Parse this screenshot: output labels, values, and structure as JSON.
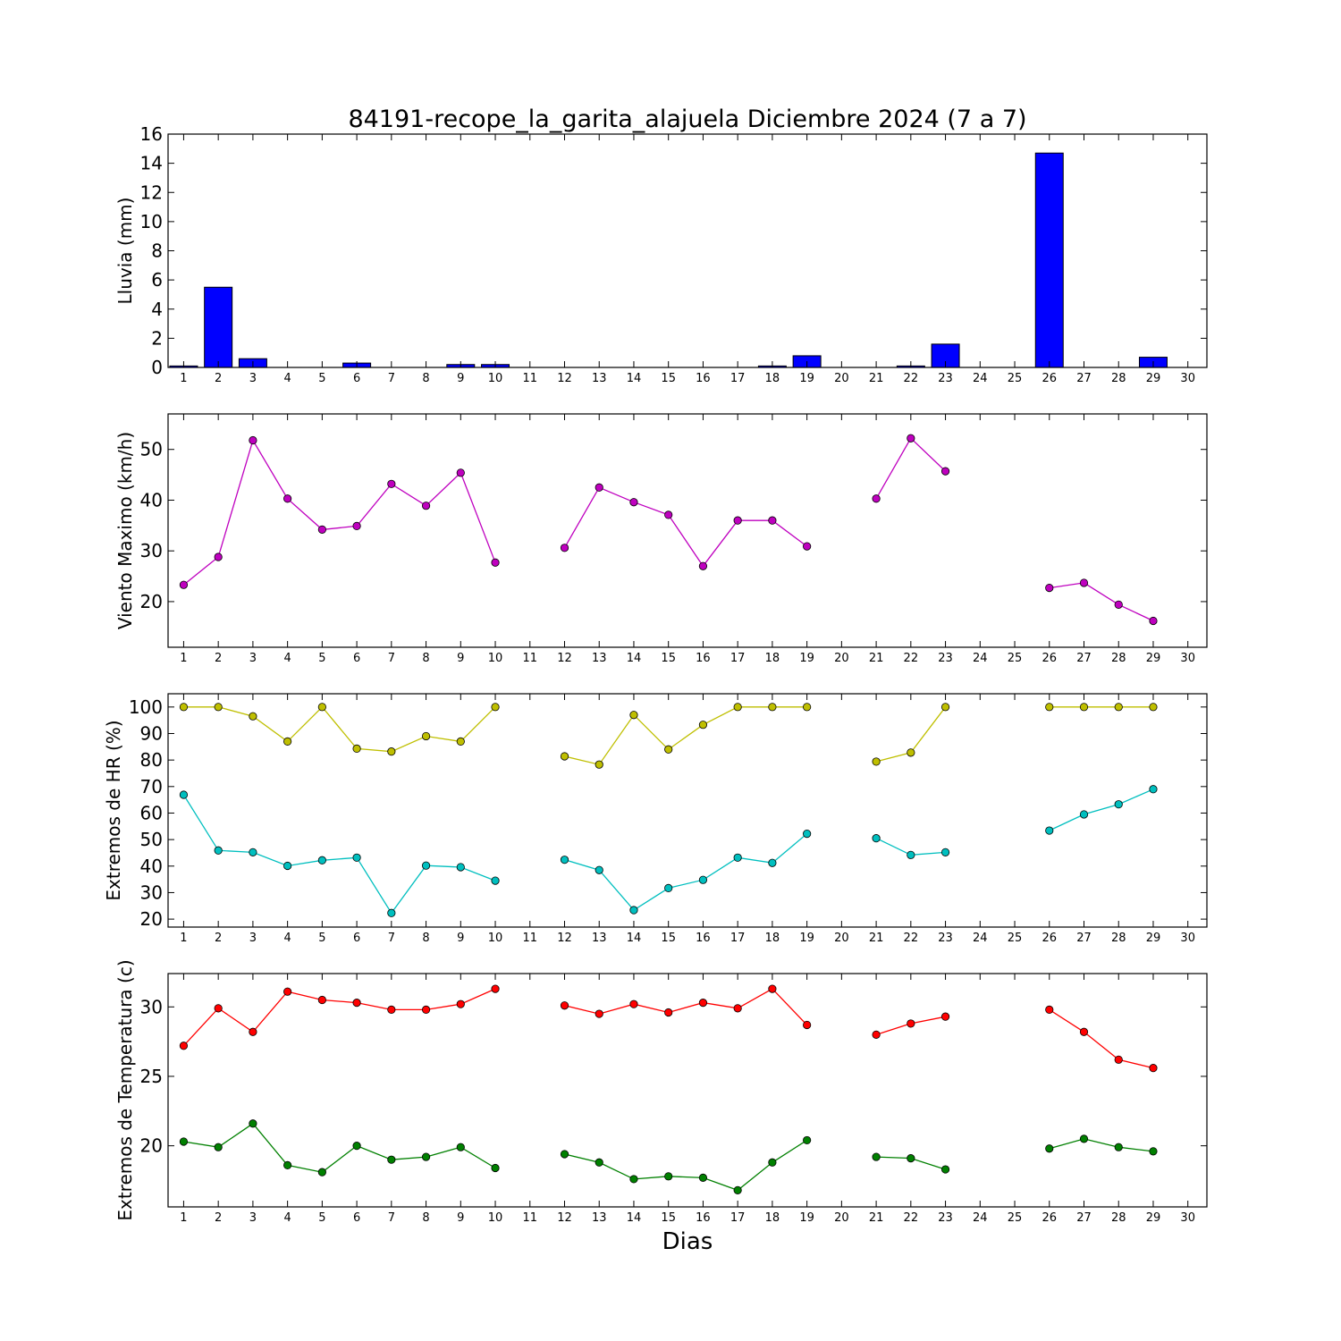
{
  "chart_data": {
    "title": "84191-recope_la_garita_alajuela Diciembre 2024  (7 a 7)",
    "xlabel": "Dias",
    "x_ticks": [
      1,
      2,
      3,
      4,
      5,
      6,
      7,
      8,
      9,
      10,
      11,
      12,
      13,
      14,
      15,
      16,
      17,
      18,
      19,
      20,
      21,
      22,
      23,
      24,
      25,
      26,
      27,
      28,
      29,
      30
    ],
    "panels": [
      {
        "type": "bar",
        "ylabel": "Lluvia (mm)",
        "ylim": [
          0,
          16
        ],
        "yticks": [
          0,
          2,
          4,
          6,
          8,
          10,
          12,
          14,
          16
        ],
        "series": [
          {
            "color": "#0000ff",
            "x": [
              1,
              2,
              3,
              4,
              5,
              6,
              7,
              8,
              9,
              10,
              11,
              12,
              13,
              14,
              15,
              16,
              17,
              18,
              19,
              20,
              21,
              22,
              23,
              24,
              25,
              26,
              27,
              28,
              29,
              30
            ],
            "values": [
              0.1,
              5.5,
              0.6,
              0,
              0,
              0.3,
              0,
              0,
              0.2,
              0.2,
              0,
              0,
              0,
              0,
              0,
              0,
              0,
              0.1,
              0.8,
              0,
              0,
              0.1,
              1.6,
              0,
              0,
              14.7,
              0,
              0,
              0.7,
              0
            ]
          }
        ]
      },
      {
        "type": "line",
        "ylabel": "Viento Maximo (km/h)",
        "ylim": [
          11,
          57
        ],
        "yticks": [
          20,
          30,
          40,
          50
        ],
        "series": [
          {
            "color": "#bf00bf",
            "x": [
              1,
              2,
              3,
              4,
              5,
              6,
              7,
              8,
              9,
              10,
              11,
              12,
              13,
              14,
              15,
              16,
              17,
              18,
              19,
              20,
              21,
              22,
              23,
              24,
              25,
              26,
              27,
              28,
              29
            ],
            "values": [
              23.3,
              28.8,
              51.8,
              40.3,
              34.2,
              34.9,
              43.2,
              38.9,
              45.4,
              27.7,
              null,
              30.6,
              42.5,
              39.6,
              37.1,
              27.0,
              36.0,
              36.0,
              30.9,
              null,
              40.3,
              52.2,
              45.7,
              null,
              null,
              22.7,
              23.7,
              19.4,
              16.2
            ]
          }
        ]
      },
      {
        "type": "line",
        "ylabel": "Extremos de HR (%)",
        "ylim": [
          17,
          105
        ],
        "yticks": [
          20,
          30,
          40,
          50,
          60,
          70,
          80,
          90,
          100
        ],
        "series": [
          {
            "color": "#bfbf00",
            "x": [
              1,
              2,
              3,
              4,
              5,
              6,
              7,
              8,
              9,
              10,
              11,
              12,
              13,
              14,
              15,
              16,
              17,
              18,
              19,
              20,
              21,
              22,
              23,
              24,
              25,
              26,
              27,
              28,
              29
            ],
            "values": [
              100,
              100,
              96.5,
              87,
              100,
              84.3,
              83.2,
              89,
              87,
              100,
              null,
              81.4,
              78.3,
              97,
              84,
              93.3,
              100,
              100,
              100,
              null,
              79.4,
              82.8,
              100,
              null,
              null,
              100,
              100,
              100,
              100
            ]
          },
          {
            "color": "#00bfbf",
            "x": [
              1,
              2,
              3,
              4,
              5,
              6,
              7,
              8,
              9,
              10,
              11,
              12,
              13,
              14,
              15,
              16,
              17,
              18,
              19,
              20,
              21,
              22,
              23,
              24,
              25,
              26,
              27,
              28,
              29
            ],
            "values": [
              66.9,
              45.9,
              45.2,
              40.1,
              42.2,
              43.2,
              22.3,
              40.2,
              39.6,
              34.5,
              null,
              42.4,
              38.5,
              23.4,
              31.7,
              34.8,
              43.2,
              41.2,
              52.2,
              null,
              50.5,
              44.2,
              45.2,
              null,
              null,
              53.4,
              59.5,
              63.3,
              69.0
            ]
          }
        ]
      },
      {
        "type": "line",
        "ylabel": "Extremos de Temperatura (c)",
        "ylim": [
          15.6,
          32.4
        ],
        "yticks": [
          20,
          25,
          30
        ],
        "series": [
          {
            "color": "#ff0000",
            "x": [
              1,
              2,
              3,
              4,
              5,
              6,
              7,
              8,
              9,
              10,
              11,
              12,
              13,
              14,
              15,
              16,
              17,
              18,
              19,
              20,
              21,
              22,
              23,
              24,
              25,
              26,
              27,
              28,
              29
            ],
            "values": [
              27.2,
              29.9,
              28.2,
              31.1,
              30.5,
              30.3,
              29.8,
              29.8,
              30.2,
              31.3,
              null,
              30.1,
              29.5,
              30.2,
              29.6,
              30.3,
              29.9,
              31.3,
              28.7,
              null,
              28.0,
              28.8,
              29.3,
              null,
              null,
              29.8,
              28.2,
              26.2,
              25.6
            ]
          },
          {
            "color": "#008000",
            "x": [
              1,
              2,
              3,
              4,
              5,
              6,
              7,
              8,
              9,
              10,
              11,
              12,
              13,
              14,
              15,
              16,
              17,
              18,
              19,
              20,
              21,
              22,
              23,
              24,
              25,
              26,
              27,
              28,
              29
            ],
            "values": [
              20.3,
              19.9,
              21.6,
              18.6,
              18.1,
              20.0,
              19.0,
              19.2,
              19.9,
              18.4,
              null,
              19.4,
              18.8,
              17.6,
              17.8,
              17.7,
              16.8,
              18.8,
              20.4,
              null,
              19.2,
              19.1,
              18.3,
              null,
              null,
              19.8,
              20.5,
              19.9,
              19.6
            ]
          }
        ]
      }
    ]
  }
}
